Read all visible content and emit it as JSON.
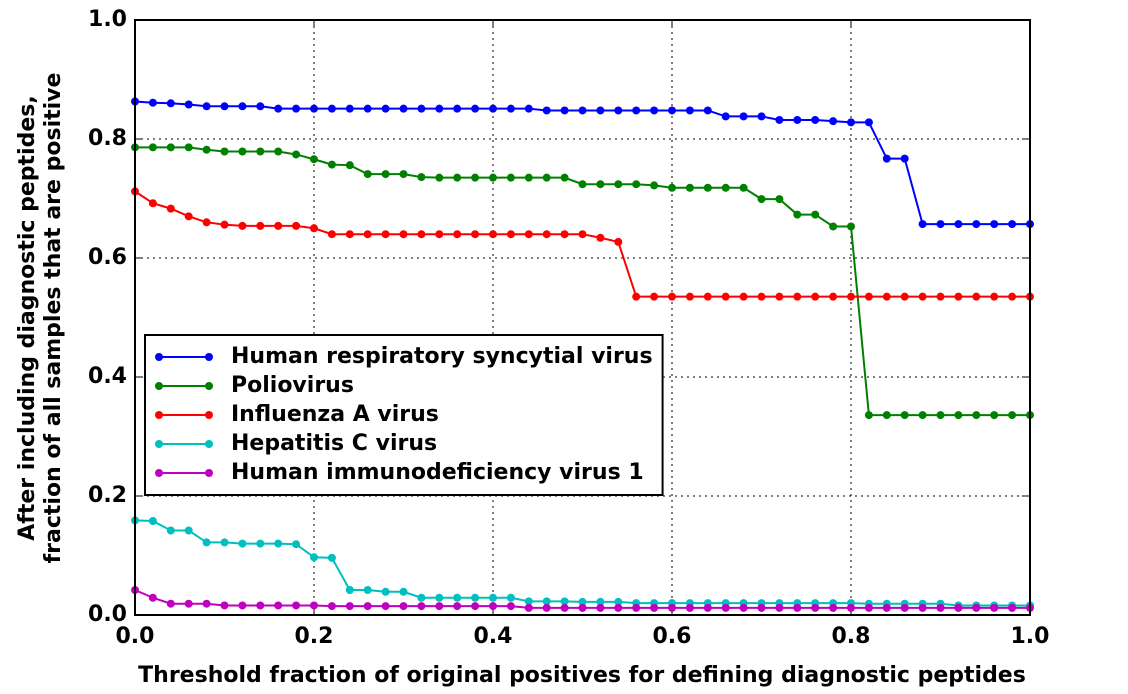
{
  "chart_data": {
    "type": "line",
    "xlabel": "Threshold fraction of original positives for defining diagnostic peptides",
    "ylabel": [
      "After including diagnostic peptides,",
      "fraction of all samples that are positive"
    ],
    "x": [
      0,
      0.02,
      0.04,
      0.06,
      0.08,
      0.1,
      0.12,
      0.14,
      0.16,
      0.18,
      0.2,
      0.22,
      0.24,
      0.26,
      0.28,
      0.3,
      0.32,
      0.34,
      0.36,
      0.38,
      0.4,
      0.42,
      0.44,
      0.46,
      0.48,
      0.5,
      0.52,
      0.54,
      0.56,
      0.58,
      0.6,
      0.62,
      0.64,
      0.66,
      0.68,
      0.7,
      0.72,
      0.74,
      0.76,
      0.78,
      0.8,
      0.82,
      0.84,
      0.86,
      0.88,
      0.9,
      0.92,
      0.94,
      0.96,
      0.98,
      1
    ],
    "series": [
      {
        "name": "Human respiratory syncytial virus",
        "color": "#0000ff",
        "values": [
          0.863,
          0.861,
          0.86,
          0.858,
          0.855,
          0.855,
          0.855,
          0.855,
          0.851,
          0.851,
          0.851,
          0.851,
          0.851,
          0.851,
          0.851,
          0.851,
          0.851,
          0.851,
          0.851,
          0.851,
          0.851,
          0.851,
          0.851,
          0.848,
          0.848,
          0.848,
          0.848,
          0.848,
          0.848,
          0.848,
          0.848,
          0.848,
          0.848,
          0.838,
          0.838,
          0.838,
          0.832,
          0.832,
          0.832,
          0.83,
          0.828,
          0.828,
          0.767,
          0.767,
          0.657,
          0.657,
          0.657,
          0.657,
          0.657,
          0.657,
          0.657
        ]
      },
      {
        "name": "Poliovirus",
        "color": "#008000",
        "values": [
          0.786,
          0.786,
          0.786,
          0.786,
          0.782,
          0.779,
          0.779,
          0.779,
          0.779,
          0.774,
          0.766,
          0.757,
          0.756,
          0.741,
          0.741,
          0.741,
          0.736,
          0.735,
          0.735,
          0.735,
          0.735,
          0.735,
          0.735,
          0.735,
          0.735,
          0.724,
          0.724,
          0.724,
          0.724,
          0.722,
          0.718,
          0.718,
          0.718,
          0.718,
          0.718,
          0.699,
          0.699,
          0.673,
          0.673,
          0.653,
          0.653,
          0.336,
          0.336,
          0.336,
          0.336,
          0.336,
          0.336,
          0.336,
          0.336,
          0.336,
          0.336
        ]
      },
      {
        "name": "Influenza A virus",
        "color": "#ff0000",
        "values": [
          0.712,
          0.692,
          0.683,
          0.67,
          0.66,
          0.656,
          0.654,
          0.654,
          0.654,
          0.654,
          0.65,
          0.64,
          0.64,
          0.64,
          0.64,
          0.64,
          0.64,
          0.64,
          0.64,
          0.64,
          0.64,
          0.64,
          0.64,
          0.64,
          0.64,
          0.64,
          0.634,
          0.627,
          0.535,
          0.535,
          0.535,
          0.535,
          0.535,
          0.535,
          0.535,
          0.535,
          0.535,
          0.535,
          0.535,
          0.535,
          0.535,
          0.535,
          0.535,
          0.535,
          0.535,
          0.535,
          0.535,
          0.535,
          0.535,
          0.535,
          0.535
        ]
      },
      {
        "name": "Hepatitis C virus",
        "color": "#00bfbf",
        "values": [
          0.159,
          0.158,
          0.142,
          0.142,
          0.122,
          0.122,
          0.12,
          0.12,
          0.12,
          0.119,
          0.097,
          0.096,
          0.042,
          0.042,
          0.039,
          0.039,
          0.029,
          0.029,
          0.029,
          0.029,
          0.029,
          0.029,
          0.023,
          0.023,
          0.023,
          0.022,
          0.022,
          0.022,
          0.02,
          0.02,
          0.02,
          0.02,
          0.02,
          0.02,
          0.02,
          0.02,
          0.02,
          0.02,
          0.02,
          0.02,
          0.02,
          0.019,
          0.019,
          0.019,
          0.019,
          0.019,
          0.016,
          0.016,
          0.016,
          0.016,
          0.016
        ]
      },
      {
        "name": "Human immunodeficiency virus 1",
        "color": "#bf00bf",
        "values": [
          0.042,
          0.029,
          0.019,
          0.019,
          0.019,
          0.016,
          0.016,
          0.016,
          0.016,
          0.016,
          0.016,
          0.015,
          0.015,
          0.015,
          0.015,
          0.015,
          0.015,
          0.015,
          0.015,
          0.015,
          0.015,
          0.015,
          0.012,
          0.012,
          0.012,
          0.012,
          0.012,
          0.012,
          0.012,
          0.012,
          0.012,
          0.012,
          0.012,
          0.012,
          0.012,
          0.012,
          0.012,
          0.012,
          0.012,
          0.012,
          0.012,
          0.012,
          0.012,
          0.012,
          0.012,
          0.012,
          0.012,
          0.012,
          0.012,
          0.012,
          0.012
        ]
      }
    ],
    "xlim": [
      0,
      1
    ],
    "ylim": [
      0,
      1
    ],
    "xticks": [
      {
        "value": 0,
        "label": "0.0"
      },
      {
        "value": 0.2,
        "label": "0.2"
      },
      {
        "value": 0.4,
        "label": "0.4"
      },
      {
        "value": 0.6,
        "label": "0.6"
      },
      {
        "value": 0.8,
        "label": "0.8"
      },
      {
        "value": 1,
        "label": "1.0"
      }
    ],
    "yticks": [
      {
        "value": 0,
        "label": "0.0"
      },
      {
        "value": 0.2,
        "label": "0.2"
      },
      {
        "value": 0.4,
        "label": "0.4"
      },
      {
        "value": 0.6,
        "label": "0.6"
      },
      {
        "value": 0.8,
        "label": "0.8"
      },
      {
        "value": 1,
        "label": "1.0"
      }
    ],
    "grid": true,
    "legend": "center left"
  }
}
